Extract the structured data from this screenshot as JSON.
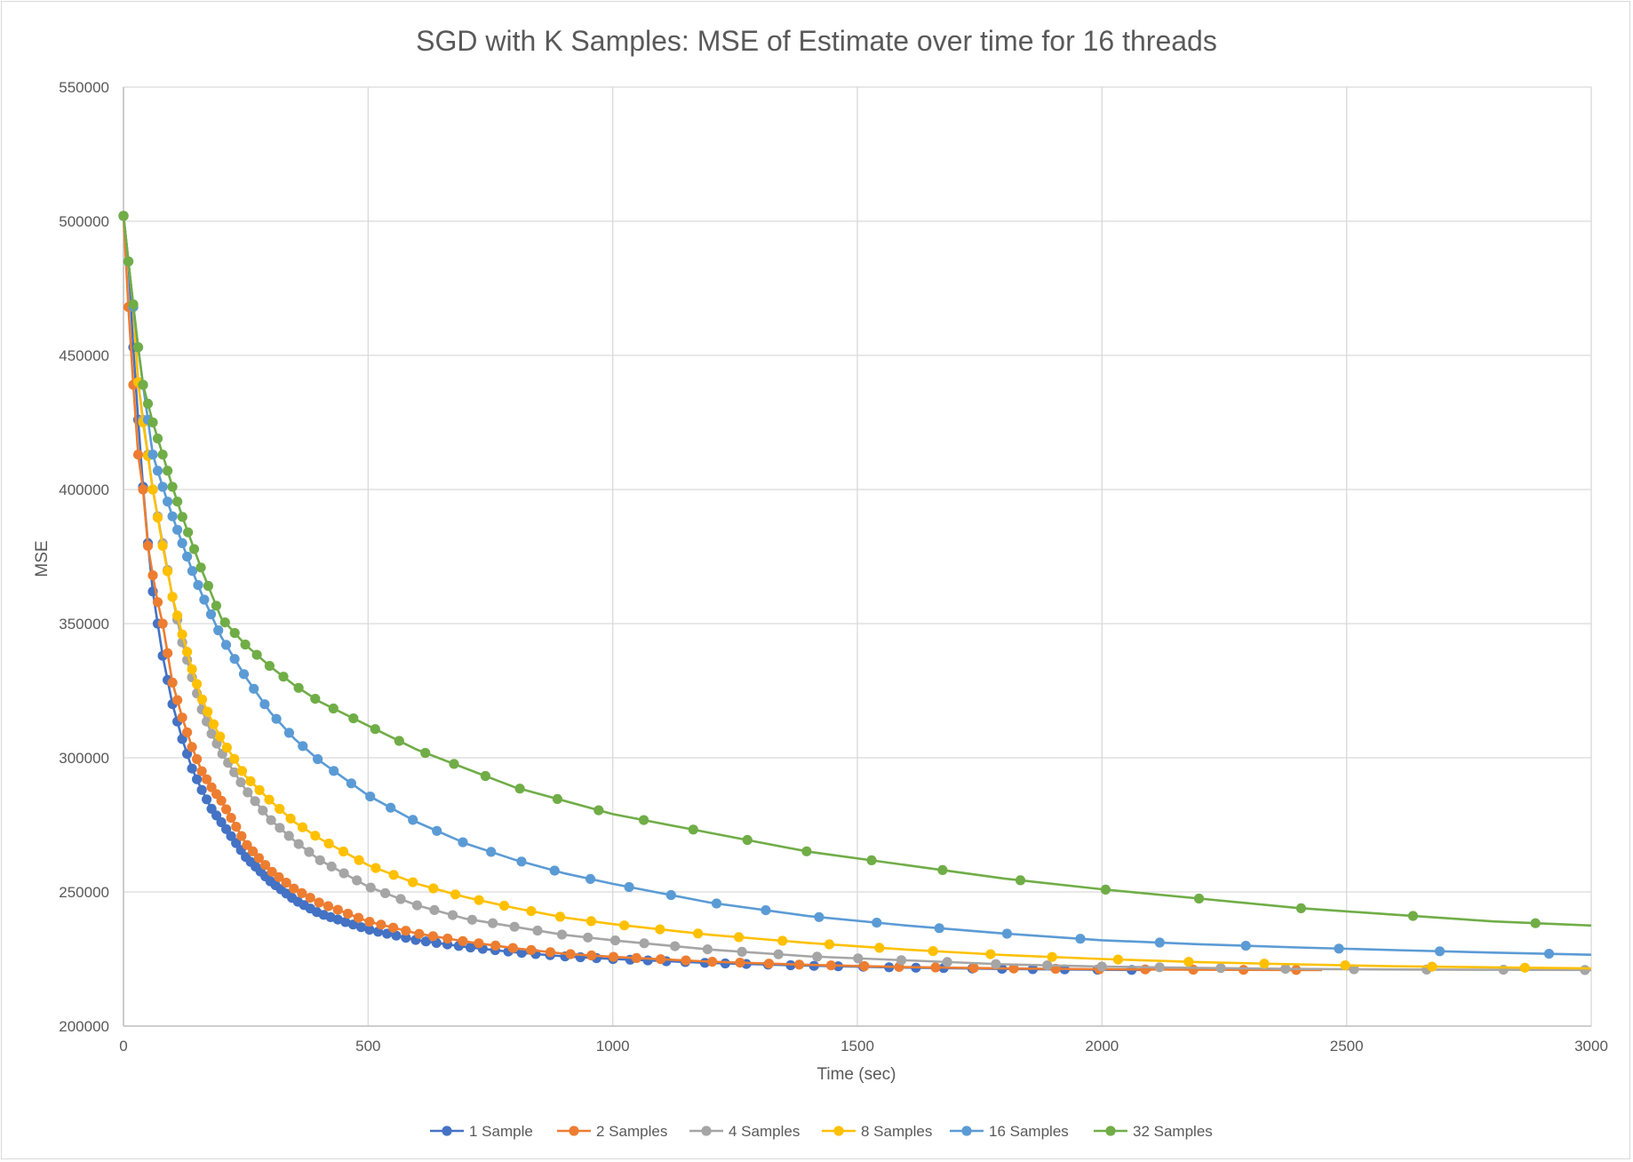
{
  "chart_data": {
    "type": "line",
    "title": "SGD with K Samples: MSE of Estimate over time for 16 threads",
    "xlabel": "Time (sec)",
    "ylabel": "MSE",
    "xlim": [
      0,
      3000
    ],
    "ylim": [
      200000,
      550000
    ],
    "x_ticks": [
      "0",
      "500",
      "1000",
      "1500",
      "2000",
      "2500",
      "3000"
    ],
    "y_ticks": [
      "200000",
      "250000",
      "300000",
      "350000",
      "400000",
      "450000",
      "500000",
      "550000"
    ],
    "grid": true,
    "legend_position": "bottom",
    "markers": true,
    "series": [
      {
        "name": "1 Sample",
        "color": "#4472C4",
        "x": [
          0,
          10,
          20,
          30,
          40,
          50,
          60,
          70,
          80,
          100,
          120,
          140,
          160,
          180,
          200,
          250,
          300,
          350,
          400,
          500,
          600,
          700,
          800,
          900,
          1000,
          1200,
          1400,
          1600,
          1800,
          2000,
          2100
        ],
        "y": [
          502000,
          485000,
          453000,
          426000,
          401000,
          380000,
          362000,
          350000,
          338000,
          320000,
          307000,
          296000,
          288000,
          281000,
          276000,
          263000,
          254000,
          247000,
          242000,
          236000,
          232000,
          229500,
          227500,
          226000,
          225000,
          223500,
          222500,
          221800,
          221300,
          221000,
          220900
        ]
      },
      {
        "name": "2 Samples",
        "color": "#ED7D31",
        "x": [
          0,
          10,
          20,
          30,
          40,
          50,
          60,
          70,
          80,
          100,
          120,
          140,
          160,
          180,
          200,
          250,
          300,
          350,
          400,
          500,
          600,
          700,
          800,
          900,
          1000,
          1200,
          1400,
          1600,
          1800,
          2000,
          2200,
          2450
        ],
        "y": [
          502000,
          468000,
          439000,
          413000,
          400000,
          379000,
          368000,
          358000,
          350000,
          328000,
          315000,
          304000,
          295000,
          289000,
          284000,
          268000,
          258000,
          251000,
          246000,
          239000,
          234500,
          231500,
          229000,
          227000,
          225800,
          224000,
          222800,
          222000,
          221500,
          221200,
          221000,
          220900
        ]
      },
      {
        "name": "4 Samples",
        "color": "#A5A5A5",
        "x": [
          0,
          10,
          20,
          30,
          40,
          50,
          60,
          80,
          100,
          120,
          140,
          160,
          180,
          200,
          250,
          300,
          350,
          400,
          500,
          600,
          700,
          800,
          900,
          1000,
          1200,
          1400,
          1600,
          1800,
          2000,
          2200,
          2400,
          2600,
          2800,
          3000
        ],
        "y": [
          502000,
          485000,
          468000,
          440000,
          426000,
          413000,
          400000,
          380000,
          360000,
          343000,
          330000,
          318000,
          309000,
          302000,
          288000,
          277000,
          269000,
          262000,
          252000,
          245000,
          240000,
          237000,
          234000,
          232000,
          228500,
          226000,
          224500,
          223000,
          222200,
          221700,
          221300,
          221100,
          221000,
          220900
        ]
      },
      {
        "name": "8 Samples",
        "color": "#FFC000",
        "x": [
          0,
          10,
          20,
          30,
          40,
          60,
          80,
          100,
          120,
          140,
          160,
          180,
          200,
          250,
          300,
          350,
          400,
          500,
          600,
          700,
          800,
          900,
          1000,
          1200,
          1400,
          1600,
          1800,
          2000,
          2200,
          2400,
          2600,
          2800,
          3000
        ],
        "y": [
          502000,
          485000,
          468000,
          440000,
          425000,
          400000,
          379000,
          360000,
          346000,
          333000,
          322000,
          314000,
          307000,
          293000,
          284000,
          276000,
          270000,
          260000,
          253000,
          248000,
          244000,
          240500,
          238000,
          234000,
          231000,
          228500,
          226500,
          225000,
          223800,
          223000,
          222300,
          221900,
          221500
        ]
      },
      {
        "name": "16 Samples",
        "color": "#5B9BD5",
        "x": [
          0,
          10,
          20,
          30,
          40,
          50,
          60,
          80,
          100,
          120,
          140,
          160,
          180,
          200,
          250,
          300,
          350,
          400,
          500,
          600,
          700,
          800,
          900,
          1000,
          1200,
          1400,
          1600,
          1800,
          2000,
          2200,
          2400,
          2600,
          2800,
          3000
        ],
        "y": [
          502000,
          485000,
          468000,
          453000,
          439000,
          426000,
          413000,
          401000,
          390000,
          380000,
          370000,
          361000,
          353000,
          345000,
          330000,
          317000,
          307000,
          299000,
          286000,
          276000,
          268000,
          262000,
          257000,
          253000,
          246000,
          241000,
          237500,
          234500,
          232000,
          230500,
          229300,
          228300,
          227400,
          226600
        ]
      },
      {
        "name": "32 Samples",
        "color": "#70AD47",
        "x": [
          0,
          10,
          20,
          30,
          40,
          60,
          80,
          100,
          120,
          140,
          160,
          180,
          200,
          250,
          300,
          350,
          400,
          500,
          600,
          700,
          800,
          900,
          1000,
          1200,
          1400,
          1600,
          1800,
          2000,
          2200,
          2400,
          2600,
          2800,
          3000
        ],
        "y": [
          502000,
          485000,
          469000,
          453000,
          439000,
          425000,
          413000,
          401000,
          390000,
          380000,
          370000,
          361000,
          352000,
          342000,
          334000,
          327000,
          321000,
          312000,
          303000,
          296000,
          289000,
          284000,
          279000,
          272000,
          265000,
          260000,
          255000,
          251000,
          247500,
          244000,
          241500,
          239000,
          237500
        ]
      }
    ]
  }
}
